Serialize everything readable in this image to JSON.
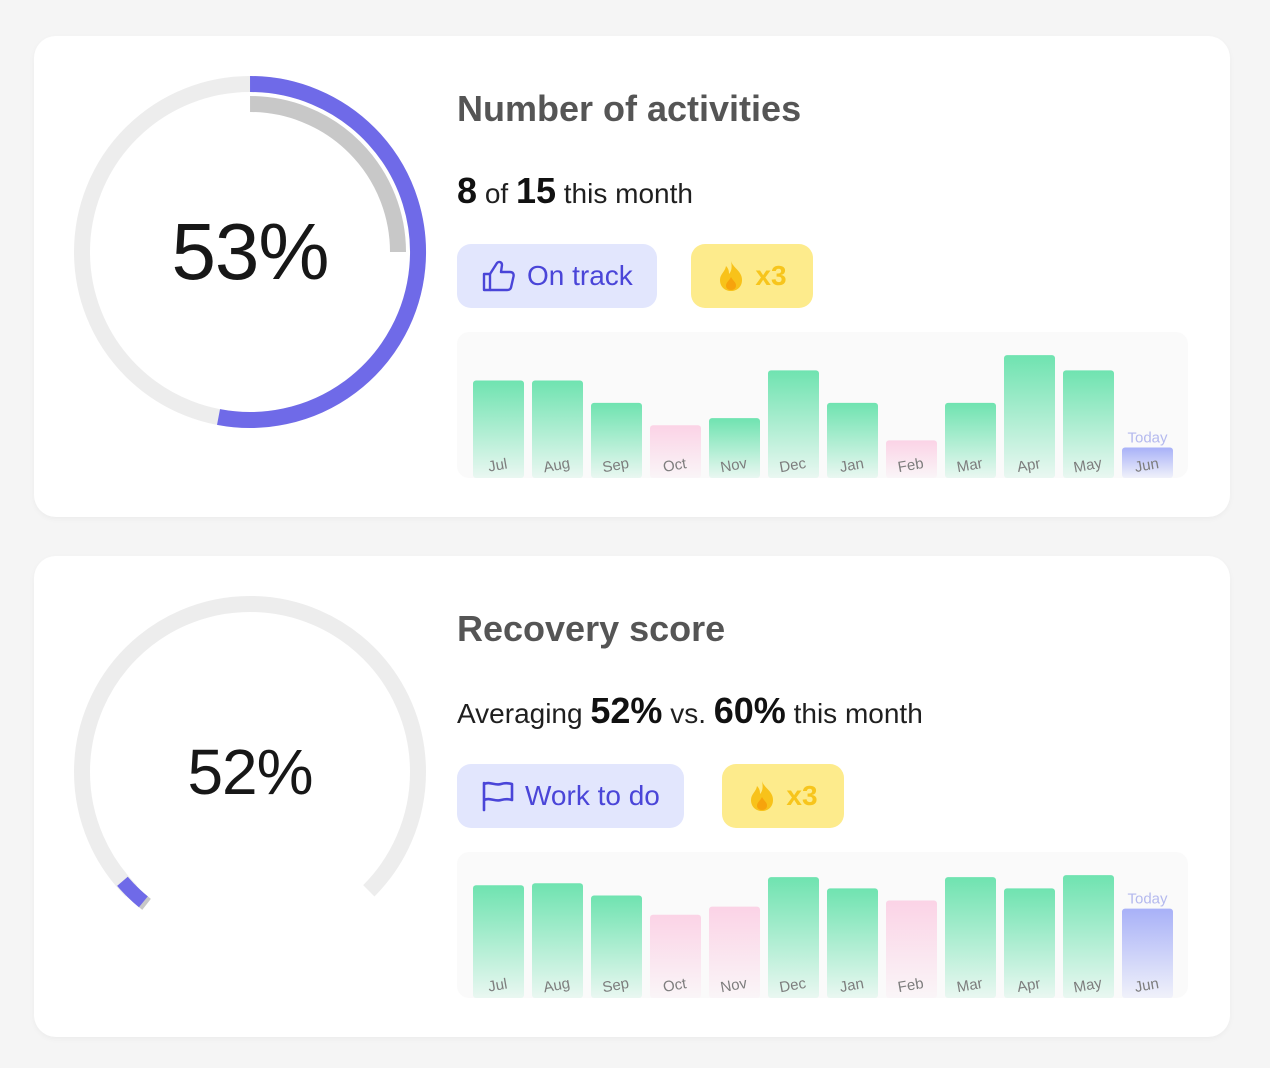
{
  "colors": {
    "accent": "#6f6ae8",
    "track": "#ededed",
    "target": "#c8c8c8",
    "good": "#6fe3b0",
    "bad": "#fbd3e6",
    "today": "#a8b1f8",
    "today_label": "#b4b9ee",
    "month_label": "#7d7d7d"
  },
  "cards": [
    {
      "gauge": {
        "style": "full-ring",
        "value": 0.53,
        "target": 0.25,
        "label": "53%"
      },
      "title": "Number of activities",
      "summary": {
        "value": "8",
        "of_text": "of",
        "total": "15",
        "suffix": "this month"
      },
      "status": {
        "icon": "thumbs-up-icon",
        "label": "On track"
      },
      "streak": {
        "icon": "fire-icon",
        "label": "x3"
      },
      "today_label": "Today",
      "chart_data": {
        "type": "bar",
        "categories": [
          "Jul",
          "Aug",
          "Sep",
          "Oct",
          "Nov",
          "Dec",
          "Jan",
          "Feb",
          "Mar",
          "Apr",
          "May",
          "Jun"
        ],
        "values": [
          96,
          96,
          74,
          52,
          59,
          106,
          74,
          37,
          74,
          121,
          106,
          30
        ],
        "status": [
          "good",
          "good",
          "good",
          "bad",
          "good",
          "good",
          "good",
          "bad",
          "good",
          "good",
          "good",
          "today"
        ]
      }
    },
    {
      "gauge": {
        "style": "arc",
        "value": 0.52,
        "target": 0.6,
        "label": "52%"
      },
      "title": "Recovery score",
      "summary": {
        "prefix": "Averaging",
        "value": "52%",
        "vs_text": "vs.",
        "compare": "60%",
        "suffix": "this month"
      },
      "status": {
        "icon": "flag-icon",
        "label": "Work to do"
      },
      "streak": {
        "icon": "fire-icon",
        "label": "x3"
      },
      "today_label": "Today",
      "chart_data": {
        "type": "bar",
        "categories": [
          "Jul",
          "Aug",
          "Sep",
          "Oct",
          "Nov",
          "Dec",
          "Jan",
          "Feb",
          "Mar",
          "Apr",
          "May",
          "Jun"
        ],
        "values": [
          111,
          113,
          101,
          82,
          90,
          119,
          108,
          96,
          119,
          108,
          121,
          88
        ],
        "status": [
          "good",
          "good",
          "good",
          "bad",
          "bad",
          "good",
          "good",
          "bad",
          "good",
          "good",
          "good",
          "today"
        ]
      }
    }
  ]
}
